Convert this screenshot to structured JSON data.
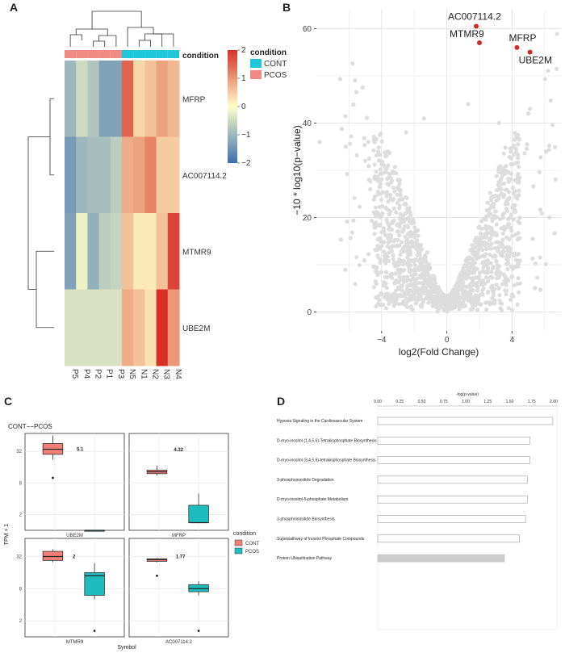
{
  "chart_data": [
    {
      "panel": "A",
      "type": "heatmap",
      "columns": [
        "P5",
        "P4",
        "P2",
        "P1",
        "P3",
        "N5",
        "N1",
        "N2",
        "N3",
        "N4"
      ],
      "rows": [
        "MFRP",
        "AC007114.2",
        "MTMR9",
        "UBE2M"
      ],
      "values": [
        [
          -1.0,
          -0.5,
          -0.8,
          -1.3,
          -1.3,
          1.5,
          0.4,
          0.6,
          0.9,
          0.7
        ],
        [
          -1.4,
          -1.0,
          -0.9,
          -0.9,
          -0.7,
          0.8,
          0.9,
          1.2,
          0.5,
          0.5
        ],
        [
          -1.3,
          -0.2,
          -1.1,
          -0.7,
          -0.6,
          0.6,
          0.2,
          0.2,
          0.6,
          1.8
        ],
        [
          -0.4,
          -0.4,
          -0.4,
          -0.4,
          -0.4,
          0.8,
          0.6,
          0.3,
          2.0,
          1.0
        ]
      ],
      "annotation": {
        "title": "condition",
        "groups": [
          "PCOS",
          "PCOS",
          "PCOS",
          "PCOS",
          "PCOS",
          "CONT",
          "CONT",
          "CONT",
          "CONT",
          "CONT"
        ],
        "legend": [
          {
            "label": "CONT",
            "color": "#1ec8d8"
          },
          {
            "label": "PCOS",
            "color": "#f08a84"
          }
        ]
      },
      "color_scale": {
        "min": -2,
        "max": 2,
        "ticks": [
          2,
          1,
          0,
          -1,
          -2
        ],
        "low": "#3c6fb0",
        "mid": "#ffffc8",
        "high": "#d73027"
      }
    },
    {
      "panel": "B",
      "type": "scatter",
      "xlabel": "log2(Fold Change)",
      "ylabel": "−10 * log10(p−value)",
      "xticks": [
        -4,
        0,
        4
      ],
      "yticks": [
        0,
        20,
        40,
        60
      ],
      "xlim": [
        -8,
        7
      ],
      "ylim": [
        -4,
        64
      ],
      "highlighted": [
        {
          "label": "AC007114.2",
          "x": 1.8,
          "y": 60.5
        },
        {
          "label": "MTMR9",
          "x": 2.0,
          "y": 57.0
        },
        {
          "label": "MFRP",
          "x": 4.3,
          "y": 56.0
        },
        {
          "label": "UBE2M",
          "x": 5.1,
          "y": 55.0
        }
      ],
      "highlight_color": "#d62728",
      "background_color": "#dddddd"
    },
    {
      "panel": "C",
      "type": "box",
      "title": "CONT−−PCOS",
      "ylabel": "TPM + 1",
      "xlabel": "Symbol",
      "yticks": [
        "2",
        "8",
        "32"
      ],
      "legend_title": "condition",
      "legend": [
        {
          "label": "CONT",
          "color": "#f07f7a"
        },
        {
          "label": "PCOS",
          "color": "#1fbcbf"
        }
      ],
      "facets": [
        {
          "gene": "UBE2M",
          "annotation": "5.1",
          "CONT": {
            "q1": 28,
            "median": 35,
            "q3": 45,
            "whisker_low": 22,
            "whisker_high": 64,
            "outliers": [
              10
            ]
          },
          "PCOS": {
            "q1": 1.0,
            "median": 1.0,
            "q3": 1.0,
            "whisker_low": 1.0,
            "whisker_high": 1.0,
            "outliers": []
          }
        },
        {
          "gene": "MFRP",
          "annotation": "4.32",
          "CONT": {
            "q1": 12,
            "median": 13,
            "q3": 14,
            "whisker_low": 11,
            "whisker_high": 17,
            "outliers": []
          },
          "PCOS": {
            "q1": 1.4,
            "median": 1.4,
            "q3": 3,
            "whisker_low": 1.4,
            "whisker_high": 5,
            "outliers": []
          }
        },
        {
          "gene": "MTMR9",
          "annotation": "2",
          "CONT": {
            "q1": 27,
            "median": 32,
            "q3": 40,
            "whisker_low": 25,
            "whisker_high": 44,
            "outliers": []
          },
          "PCOS": {
            "q1": 6,
            "median": 14,
            "q3": 16,
            "whisker_low": 5,
            "whisker_high": 24,
            "outliers": [
              1.3
            ]
          }
        },
        {
          "gene": "AC007114.2",
          "annotation": "1.77",
          "CONT": {
            "q1": 26,
            "median": 28,
            "q3": 29,
            "whisker_low": 25,
            "whisker_high": 30,
            "outliers": [
              14
            ]
          },
          "PCOS": {
            "q1": 7,
            "median": 8,
            "q3": 9.5,
            "whisker_low": 6,
            "whisker_high": 11,
            "outliers": [
              1.3
            ]
          }
        }
      ]
    },
    {
      "panel": "D",
      "type": "bar",
      "orientation": "horizontal",
      "title": "-log(p-value)",
      "xticks": [
        "0.00",
        "0.25",
        "0.50",
        "0.75",
        "1.00",
        "1.25",
        "1.50",
        "1.75",
        "2.00"
      ],
      "xlim": [
        0,
        2.0
      ],
      "categories": [
        "Hypoxia Signaling in the Cardiovascular System",
        "D-myo-inositol (1,4,5,6)-Tetrakisphosphate Biosynthesis",
        "D-myo-inositol (3,4,5,6)-tetrakisphosphate Biosynthesis",
        "3-phosphoinositide Degradation",
        "D-myo-inositol-5-phosphate Metabolism",
        "3-phosphoinositide Biosynthesis",
        "Superpathway of Inositol Phosphate Compounds",
        "Protein Ubiquitination Pathway"
      ],
      "values": [
        1.99,
        1.73,
        1.73,
        1.7,
        1.7,
        1.68,
        1.61,
        1.44
      ],
      "bar_colors": [
        "#ffffff",
        "#ffffff",
        "#ffffff",
        "#ffffff",
        "#ffffff",
        "#ffffff",
        "#ffffff",
        "#cccccc"
      ]
    }
  ],
  "labels": {
    "A": "A",
    "B": "B",
    "C": "C",
    "D": "D"
  }
}
